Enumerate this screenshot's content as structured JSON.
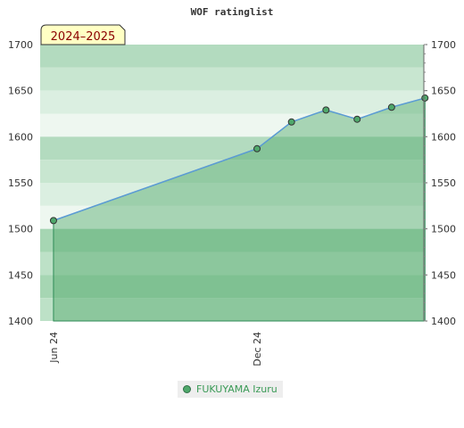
{
  "chart_data": {
    "type": "area",
    "title": "WOF ratinglist",
    "season_label": "2024–2025",
    "ylim": [
      1400,
      1700
    ],
    "yticks": [
      1400,
      1450,
      1500,
      1550,
      1600,
      1650,
      1700
    ],
    "xlim": [
      "2024-05-20",
      "2025-04-30"
    ],
    "xticks": [
      {
        "date": "2024-06-01",
        "label": "Jun 24"
      },
      {
        "date": "2024-12-01",
        "label": "Dec 24"
      }
    ],
    "series": [
      {
        "name": "FUKUYAMA Izuru",
        "color": "#4fa86b",
        "line_color": "#5b9bd5",
        "x": [
          "2024-06-01",
          "2024-12-01",
          "2025-01-01",
          "2025-02-01",
          "2025-03-01",
          "2025-04-01",
          "2025-05-01"
        ],
        "values": [
          1509,
          1587,
          1616,
          1629,
          1619,
          1632,
          1642
        ]
      }
    ],
    "grid": true,
    "legend_position": "bottom"
  }
}
